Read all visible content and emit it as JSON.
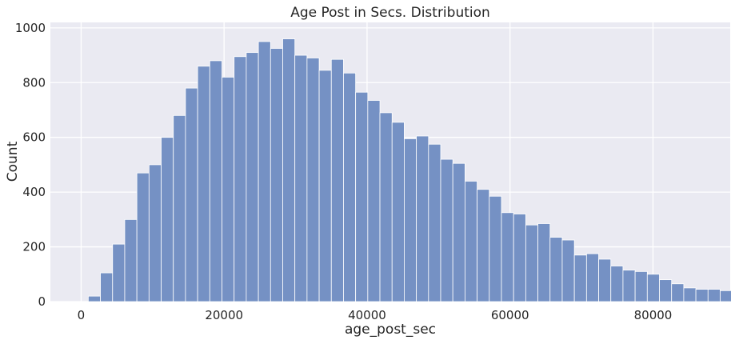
{
  "chart_data": {
    "type": "bar",
    "title": "Age Post in Secs. Distribution",
    "xlabel": "age_post_sec",
    "ylabel": "Count",
    "xlim": [
      -4300,
      90800
    ],
    "ylim": [
      0,
      1020
    ],
    "x_ticks": [
      0,
      20000,
      40000,
      60000,
      80000
    ],
    "x_tick_labels": [
      "0",
      "20000",
      "40000",
      "60000",
      "80000"
    ],
    "y_ticks": [
      0,
      200,
      400,
      600,
      800,
      1000
    ],
    "y_tick_labels": [
      "0",
      "200",
      "400",
      "600",
      "800",
      "1000"
    ],
    "grid": true,
    "legend": "none",
    "colors": {
      "bar_fill": "#7591c4",
      "bar_edge": "#ffffff",
      "plot_bg": "#eaeaf2",
      "grid": "#ffffff"
    },
    "bin_start": 1000,
    "bin_width": 1700,
    "values": [
      20,
      105,
      210,
      300,
      470,
      500,
      600,
      680,
      780,
      860,
      880,
      820,
      895,
      910,
      950,
      925,
      960,
      900,
      890,
      845,
      885,
      835,
      765,
      735,
      690,
      655,
      595,
      605,
      575,
      520,
      505,
      440,
      410,
      385,
      325,
      320,
      280,
      285,
      235,
      225,
      170,
      175,
      155,
      130,
      115,
      110,
      100,
      80,
      65,
      50,
      45,
      45,
      40
    ]
  }
}
